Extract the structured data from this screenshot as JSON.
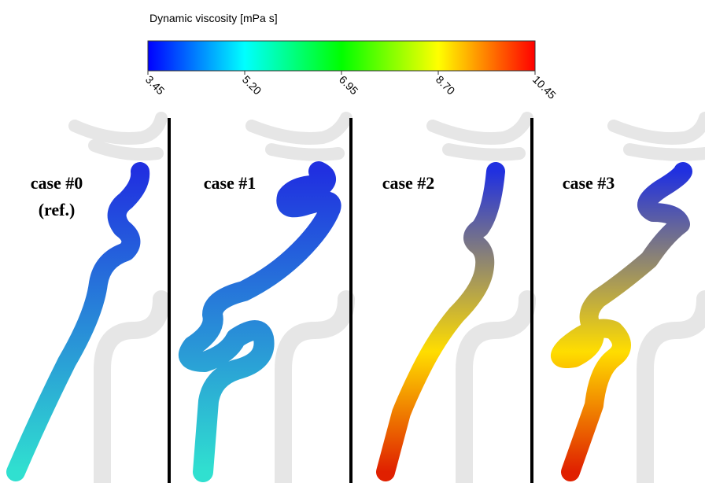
{
  "colorbar": {
    "title": "Dynamic viscosity [mPa s]",
    "lim": [
      3.45,
      10.45
    ],
    "ticks": [
      {
        "value": 3.45,
        "label": "3.45"
      },
      {
        "value": 5.2,
        "label": "5.20"
      },
      {
        "value": 6.95,
        "label": "6.95"
      },
      {
        "value": 8.7,
        "label": "8.70"
      },
      {
        "value": 10.45,
        "label": "10.45"
      }
    ]
  },
  "panels": [
    {
      "label": "case #0",
      "sublabel": "(ref.)"
    },
    {
      "label": "case #1"
    },
    {
      "label": "case #2"
    },
    {
      "label": "case #3"
    }
  ]
}
